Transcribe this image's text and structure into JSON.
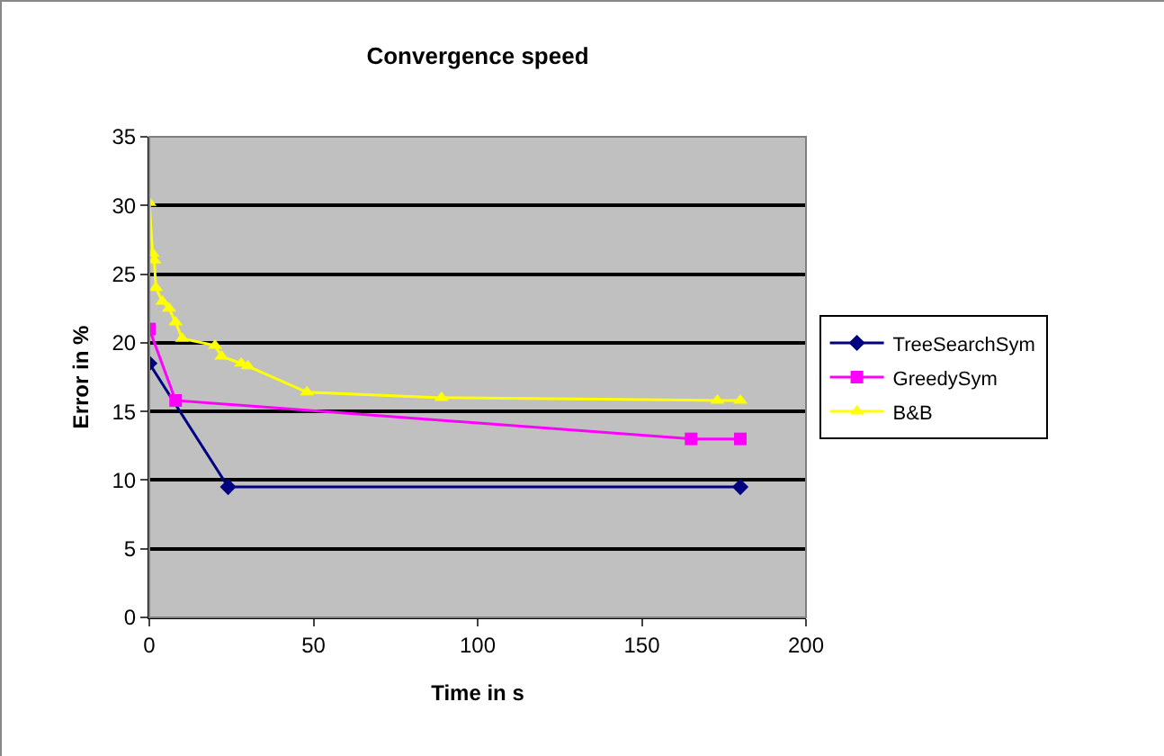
{
  "chart_data": {
    "type": "line",
    "title": "Convergence speed",
    "xlabel": "Time in s",
    "ylabel": "Error in %",
    "xlim": [
      0,
      200
    ],
    "xticks": [
      0,
      50,
      100,
      150,
      200
    ],
    "ylim": [
      0,
      35
    ],
    "yticks": [
      0,
      5,
      10,
      15,
      20,
      25,
      30,
      35
    ],
    "grid": "y",
    "legend": "right",
    "line_style": "solid",
    "series": [
      {
        "name": "TreeSearchSym",
        "color": "#000080",
        "marker": "diamond",
        "x": [
          0,
          24,
          180
        ],
        "values": [
          18.5,
          9.5,
          9.5
        ]
      },
      {
        "name": "GreedySym",
        "color": "#ff00ff",
        "marker": "square",
        "x": [
          0,
          8,
          165,
          180
        ],
        "values": [
          21,
          15.8,
          13,
          13
        ]
      },
      {
        "name": "B&B",
        "color": "#ffff00",
        "marker": "triangle",
        "x": [
          0,
          1,
          1.5,
          2,
          4,
          6,
          8,
          10,
          20,
          22,
          28,
          30,
          48,
          89,
          173,
          180
        ],
        "values": [
          30.2,
          26.5,
          26,
          24,
          23,
          22.5,
          21.5,
          20.3,
          19.8,
          19,
          18.5,
          18.3,
          16.4,
          16,
          15.8,
          15.8
        ]
      }
    ]
  }
}
